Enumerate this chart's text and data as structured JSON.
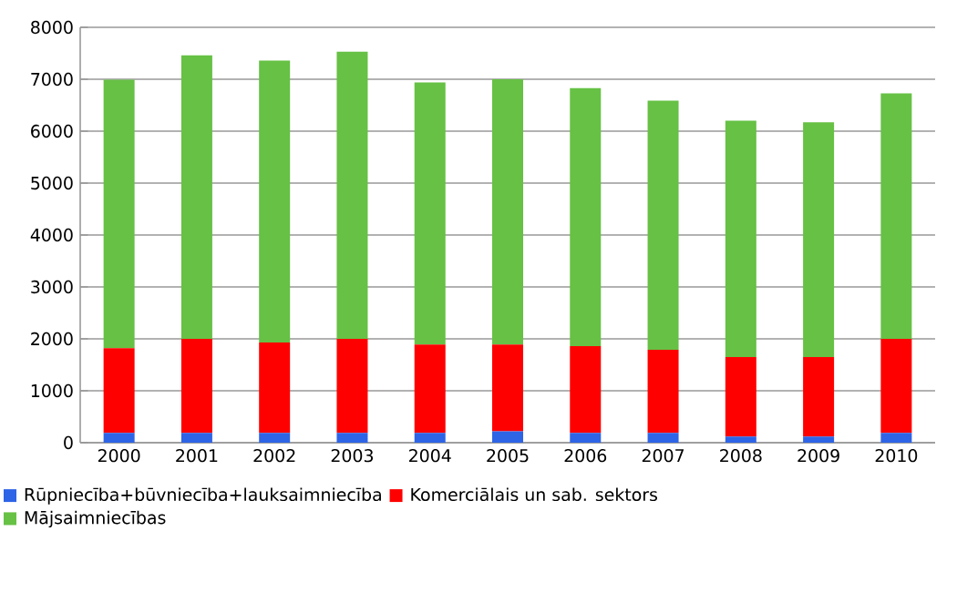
{
  "chart_data": {
    "type": "bar",
    "stacked": true,
    "categories": [
      "2000",
      "2001",
      "2002",
      "2003",
      "2004",
      "2005",
      "2006",
      "2007",
      "2008",
      "2009",
      "2010"
    ],
    "series": [
      {
        "name": "Rūpniecība+būvniecība+lauksaimniecība",
        "color": "#2e64e6",
        "values": [
          190,
          190,
          190,
          190,
          190,
          220,
          190,
          190,
          120,
          120,
          190
        ]
      },
      {
        "name": "Komerciālais un sab. sektors",
        "color": "#ff0000",
        "values": [
          1630,
          1810,
          1740,
          1810,
          1700,
          1670,
          1670,
          1600,
          1530,
          1530,
          1810
        ]
      },
      {
        "name": "Mājsaimniecības",
        "color": "#66c144",
        "values": [
          5170,
          5460,
          5430,
          5530,
          5050,
          5110,
          4970,
          4800,
          4550,
          4520,
          4730
        ]
      }
    ],
    "ylim": [
      0,
      8000
    ],
    "yticks": [
      0,
      1000,
      2000,
      3000,
      4000,
      5000,
      6000,
      7000,
      8000
    ],
    "grid": "y",
    "legend": "bottom"
  }
}
